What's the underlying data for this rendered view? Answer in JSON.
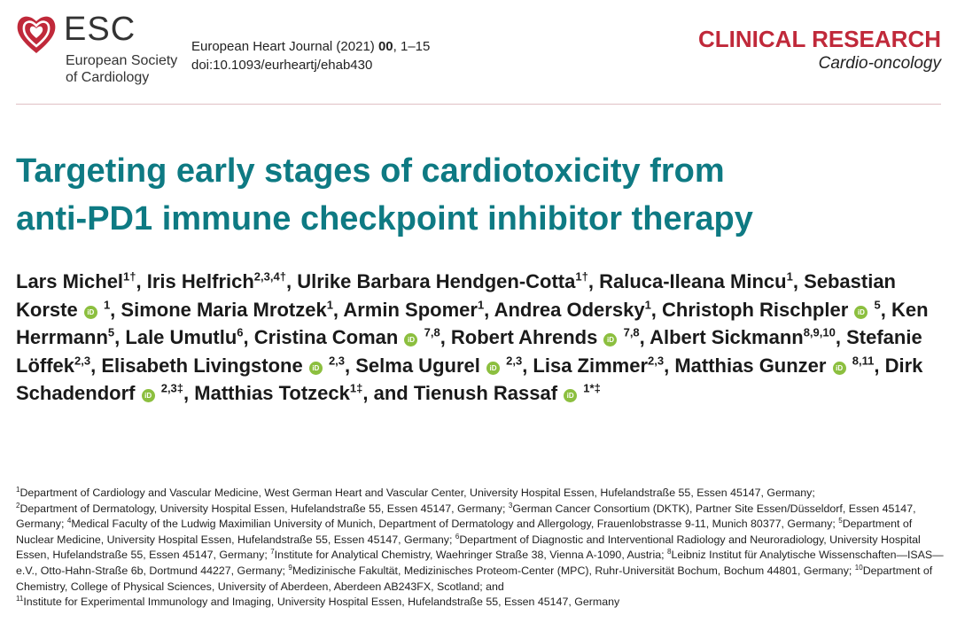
{
  "header": {
    "logo_text": "ESC",
    "society_line1": "European Society",
    "society_line2": "of Cardiology",
    "journal_prefix": "European Heart Journal (2021) ",
    "journal_volume": "00",
    "journal_pages": ", 1–15",
    "doi": "doi:10.1093/eurheartj/ehab430",
    "category": "CLINICAL RESEARCH",
    "subcategory": "Cardio-oncology"
  },
  "title": {
    "line1": "Targeting early stages of cardiotoxicity from",
    "line2": "anti-PD1 immune checkpoint inhibitor therapy"
  },
  "authors": [
    {
      "name": "Lars Michel",
      "sup": "1†",
      "orcid": false,
      "sep": ", "
    },
    {
      "name": "Iris Helfrich",
      "sup": "2,3,4†",
      "orcid": false,
      "sep": ", "
    },
    {
      "name": "Ulrike Barbara Hendgen-Cotta",
      "sup": "1†",
      "orcid": false,
      "sep": ", "
    },
    {
      "name": "Raluca-Ileana Mincu",
      "sup": "1",
      "orcid": false,
      "sep": ", "
    },
    {
      "name": "Sebastian Korste",
      "sup": "1",
      "orcid": true,
      "sep": ", "
    },
    {
      "name": "Simone Maria Mrotzek",
      "sup": "1",
      "orcid": false,
      "sep": ", "
    },
    {
      "name": "Armin Spomer",
      "sup": "1",
      "orcid": false,
      "sep": ", "
    },
    {
      "name": "Andrea Odersky",
      "sup": "1",
      "orcid": false,
      "sep": ", "
    },
    {
      "name": "Christoph Rischpler",
      "sup": "5",
      "orcid": true,
      "sep": ", "
    },
    {
      "name": "Ken Herrmann",
      "sup": "5",
      "orcid": false,
      "sep": ", "
    },
    {
      "name": "Lale Umutlu",
      "sup": "6",
      "orcid": false,
      "sep": ", "
    },
    {
      "name": "Cristina Coman",
      "sup": "7,8",
      "orcid": true,
      "sep": ", "
    },
    {
      "name": "Robert Ahrends",
      "sup": "7,8",
      "orcid": true,
      "sep": ", "
    },
    {
      "name": "Albert Sickmann",
      "sup": "8,9,10",
      "orcid": false,
      "sep": ", "
    },
    {
      "name": "Stefanie Löffek",
      "sup": "2,3",
      "orcid": false,
      "sep": ", "
    },
    {
      "name": "Elisabeth Livingstone",
      "sup": "2,3",
      "orcid": true,
      "sep": ", "
    },
    {
      "name": "Selma Ugurel",
      "sup": "2,3",
      "orcid": true,
      "sep": ", "
    },
    {
      "name": "Lisa Zimmer",
      "sup": "2,3",
      "orcid": false,
      "sep": ", "
    },
    {
      "name": "Matthias Gunzer",
      "sup": "8,11",
      "orcid": true,
      "sep": ", "
    },
    {
      "name": "Dirk Schadendorf",
      "sup": "2,3‡",
      "orcid": true,
      "sep": ", "
    },
    {
      "name": "Matthias Totzeck",
      "sup": "1‡",
      "orcid": false,
      "sep": ", and "
    },
    {
      "name": "Tienush Rassaf",
      "sup": "1*‡",
      "orcid": true,
      "sep": ""
    }
  ],
  "affiliations": [
    {
      "num": "1",
      "text": "Department of Cardiology and Vascular Medicine, West German Heart and Vascular Center, University Hospital Essen, Hufelandstraße 55, Essen 45147, Germany;"
    },
    {
      "num": "2",
      "text": "Department of Dermatology, University Hospital Essen, Hufelandstraße 55, Essen 45147, Germany;"
    },
    {
      "num": "3",
      "text": "German Cancer Consortium (DKTK), Partner Site Essen/Düsseldorf, Essen 45147, Germany;"
    },
    {
      "num": "4",
      "text": "Medical Faculty of the Ludwig Maximilian University of Munich, Department of Dermatology and Allergology, Frauenlobstrasse 9-11, Munich 80377, Germany;"
    },
    {
      "num": "5",
      "text": "Department of Nuclear Medicine, University Hospital Essen, Hufelandstraße 55, Essen 45147, Germany;"
    },
    {
      "num": "6",
      "text": "Department of Diagnostic and Interventional Radiology and Neuroradiology, University Hospital Essen, Hufelandstraße 55, Essen 45147, Germany;"
    },
    {
      "num": "7",
      "text": "Institute for Analytical Chemistry, Waehringer Straße 38, Vienna A-1090, Austria;"
    },
    {
      "num": "8",
      "text": "Leibniz Institut für Analytische Wissenschaften—ISAS—e.V., Otto-Hahn-Straße 6b, Dortmund 44227, Germany;"
    },
    {
      "num": "9",
      "text": "Medizinische Fakultät, Medizinisches Proteom-Center (MPC), Ruhr-Universität Bochum, Bochum 44801, Germany;"
    },
    {
      "num": "10",
      "text": "Department of Chemistry, College of Physical Sciences, University of Aberdeen, Aberdeen AB243FX, Scotland; and"
    },
    {
      "num": "11",
      "text": "Institute for Experimental Immunology and Imaging, University Hospital Essen, Hufelandstraße 55, Essen 45147, Germany"
    }
  ],
  "colors": {
    "title": "#0e7a83",
    "category": "#c0293a",
    "logo": "#c0293a",
    "orcid": "#8cbf3f"
  },
  "icons": {
    "logo": "esc-heart-logo-icon",
    "orcid": "orcid-icon"
  }
}
